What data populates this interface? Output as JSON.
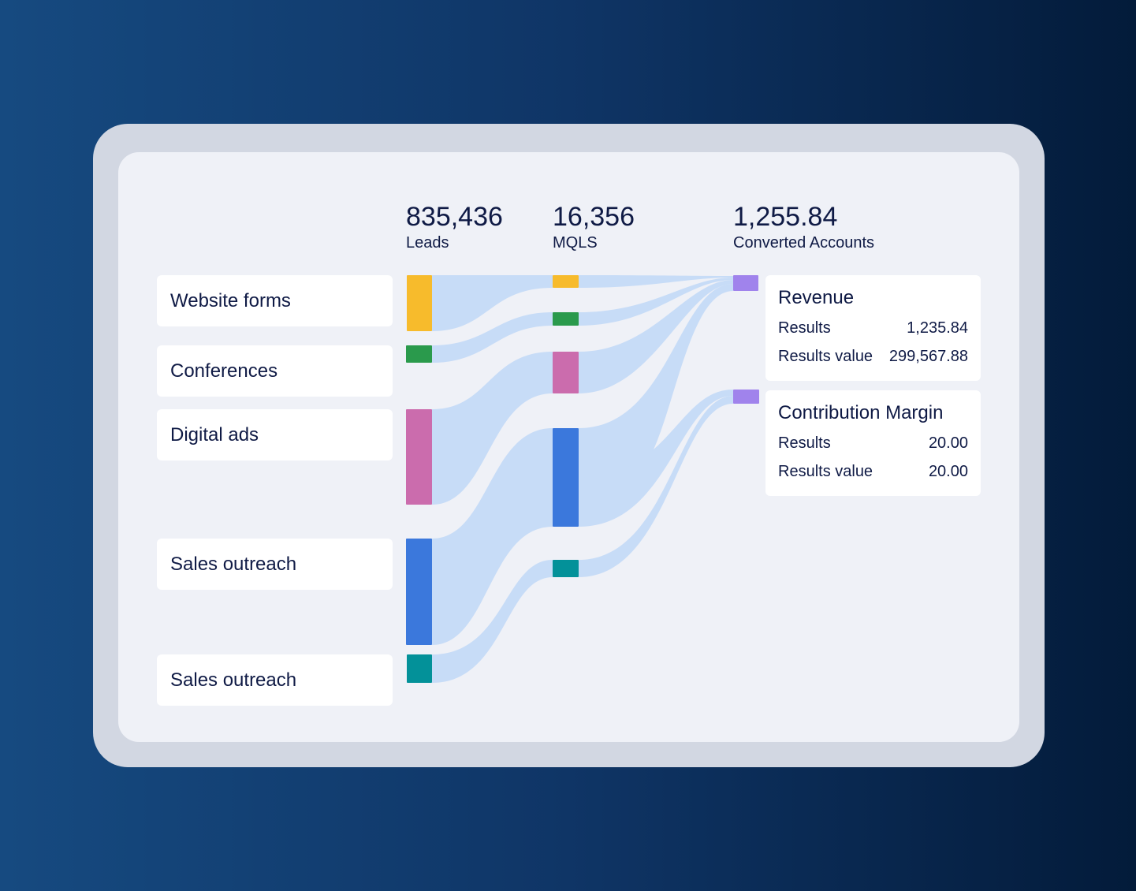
{
  "columns": [
    {
      "value": "835,436",
      "label": "Leads"
    },
    {
      "value": "16,356",
      "label": "MQLS"
    },
    {
      "value": "1,255.84",
      "label": "Converted Accounts"
    }
  ],
  "sources": [
    {
      "label": "Website forms",
      "color": "#f7bb2c"
    },
    {
      "label": "Conferences",
      "color": "#2a9a4c"
    },
    {
      "label": "Digital ads",
      "color": "#cb6cad"
    },
    {
      "label": "Sales outreach",
      "color": "#3b78dc"
    },
    {
      "label": "Sales outreach",
      "color": "#039199"
    }
  ],
  "flow_color": "#c7dcf7",
  "target_color": "#a083ec",
  "cards": [
    {
      "title": "Revenue",
      "rows": [
        {
          "label": "Results",
          "value": "1,235.84"
        },
        {
          "label": "Results value",
          "value": "299,567.88"
        }
      ]
    },
    {
      "title": "Contribution Margin",
      "rows": [
        {
          "label": "Results",
          "value": "20.00"
        },
        {
          "label": "Results value",
          "value": "20.00"
        }
      ]
    }
  ]
}
